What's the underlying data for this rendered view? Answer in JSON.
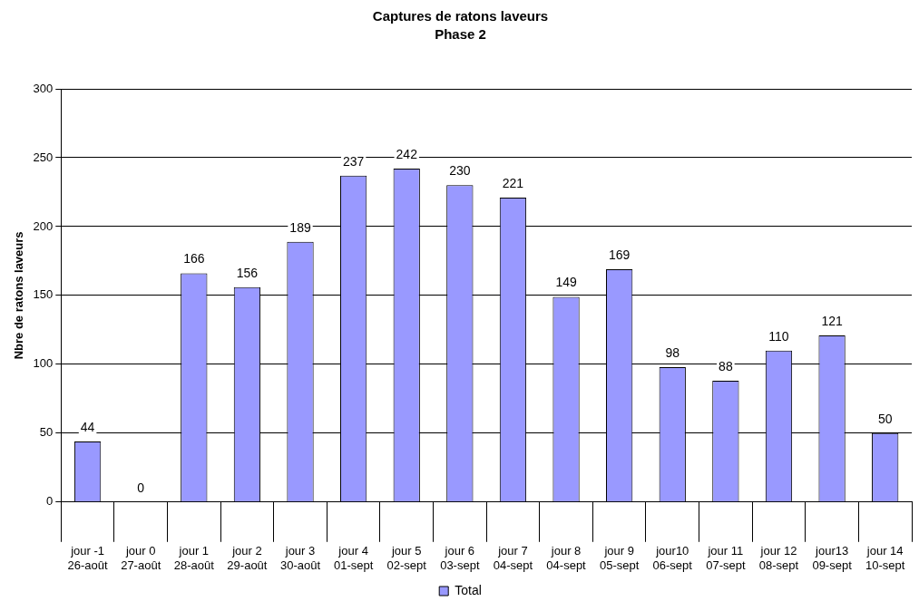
{
  "chart_data": {
    "type": "bar",
    "title": "Captures de ratons laveurs",
    "subtitle": "Phase 2",
    "ylabel": "Nbre de ratons laveurs",
    "categories": [
      "jour -1\n26-août",
      "jour 0\n27-août",
      "jour 1\n28-août",
      "jour 2\n29-août",
      "jour 3\n30-août",
      "jour 4\n01-sept",
      "jour 5\n02-sept",
      "jour 6\n03-sept",
      "jour 7\n04-sept",
      "jour 8\n04-sept",
      "jour 9\n05-sept",
      "jour10\n06-sept",
      "jour 11\n07-sept",
      "jour 12\n08-sept",
      "jour13\n09-sept",
      "jour 14\n10-sept"
    ],
    "series": [
      {
        "name": "Total",
        "color": "#9999ff",
        "values": [
          44,
          0,
          166,
          156,
          189,
          237,
          242,
          230,
          221,
          149,
          169,
          98,
          88,
          110,
          121,
          50
        ]
      }
    ],
    "ylim": [
      0,
      300
    ],
    "yticks": [
      0,
      50,
      100,
      150,
      200,
      250,
      300
    ],
    "grid": "y",
    "legend": "bottom",
    "data_labels": true
  }
}
